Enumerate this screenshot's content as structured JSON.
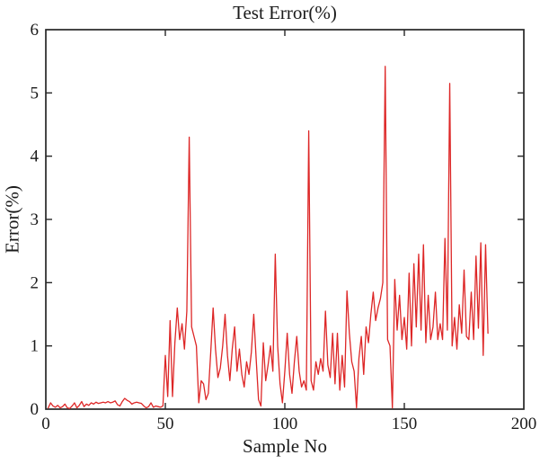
{
  "figure": {
    "title": "Test Error(%)",
    "xlabel": "Sample No",
    "ylabel": "Error(%)"
  },
  "chart_data": {
    "type": "line",
    "title": "Test Error(%)",
    "xlabel": "Sample No",
    "ylabel": "Error(%)",
    "xlim": [
      0,
      200
    ],
    "ylim": [
      0,
      6
    ],
    "xticks": [
      0,
      50,
      100,
      150,
      200
    ],
    "yticks": [
      0,
      1,
      2,
      3,
      4,
      5,
      6
    ],
    "grid": false,
    "legend_position": "none",
    "line_color": "#dd2626",
    "axis_color": "#262626",
    "x_first": 1,
    "x_increment": 1,
    "series": [
      {
        "name": "Test Error",
        "values": [
          0.02,
          0.1,
          0.05,
          0.03,
          0.06,
          0.02,
          0.04,
          0.08,
          0.02,
          0.01,
          0.05,
          0.1,
          0.02,
          0.06,
          0.12,
          0.04,
          0.08,
          0.06,
          0.1,
          0.08,
          0.11,
          0.09,
          0.1,
          0.11,
          0.1,
          0.12,
          0.1,
          0.11,
          0.13,
          0.07,
          0.05,
          0.12,
          0.17,
          0.14,
          0.12,
          0.08,
          0.1,
          0.11,
          0.1,
          0.09,
          0.05,
          0.02,
          0.04,
          0.1,
          0.03,
          0.05,
          0.04,
          0.03,
          0.05,
          0.85,
          0.2,
          1.4,
          0.2,
          1.05,
          1.6,
          1.1,
          1.35,
          0.95,
          1.55,
          4.3,
          1.3,
          1.15,
          1.0,
          0.1,
          0.45,
          0.4,
          0.15,
          0.25,
          0.9,
          1.6,
          0.95,
          0.5,
          0.65,
          1.0,
          1.5,
          0.85,
          0.45,
          0.95,
          1.3,
          0.6,
          0.95,
          0.55,
          0.35,
          0.75,
          0.55,
          0.9,
          1.5,
          0.8,
          0.15,
          0.05,
          1.05,
          0.45,
          0.7,
          1.0,
          0.6,
          2.45,
          1.0,
          0.4,
          0.1,
          0.6,
          1.2,
          0.55,
          0.25,
          0.75,
          1.15,
          0.6,
          0.35,
          0.45,
          0.3,
          4.4,
          0.45,
          0.3,
          0.75,
          0.55,
          0.8,
          0.6,
          1.55,
          0.7,
          0.5,
          1.2,
          0.4,
          1.2,
          0.3,
          0.85,
          0.35,
          1.87,
          1.2,
          0.75,
          0.6,
          0.02,
          0.8,
          1.15,
          0.55,
          1.3,
          1.05,
          1.5,
          1.85,
          1.4,
          1.6,
          1.75,
          2.0,
          5.42,
          1.1,
          1.0,
          0.02,
          2.05,
          1.25,
          1.8,
          1.1,
          1.45,
          0.95,
          2.15,
          1.0,
          2.3,
          1.3,
          2.45,
          1.25,
          2.6,
          1.05,
          1.8,
          1.1,
          1.3,
          1.85,
          1.1,
          1.35,
          1.1,
          2.7,
          1.25,
          5.15,
          1.0,
          1.45,
          0.95,
          1.65,
          1.2,
          2.2,
          1.15,
          1.1,
          1.85,
          1.1,
          2.42,
          1.28,
          2.63,
          0.85,
          2.6,
          1.2
        ]
      }
    ]
  }
}
